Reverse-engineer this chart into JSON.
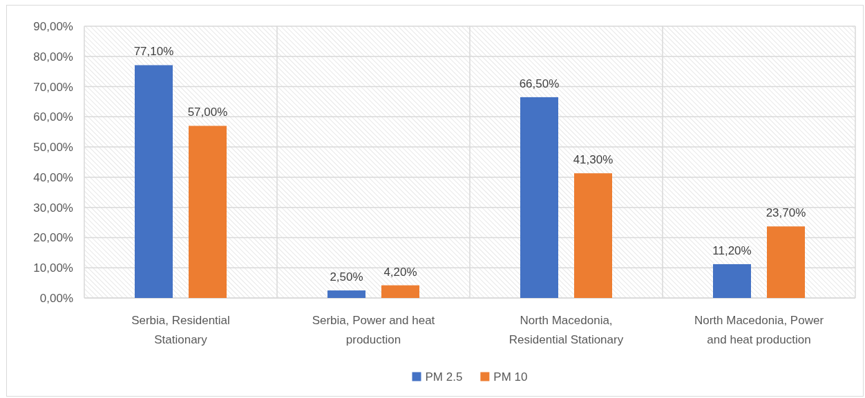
{
  "chart_data": {
    "type": "bar",
    "categories": [
      "Serbia, Residential Stationary",
      "Serbia, Power and heat production",
      "North Macedonia, Residential Stationary",
      "North Macedonia, Power and heat production"
    ],
    "series": [
      {
        "name": "PM 2.5",
        "color": "#4472c4",
        "values": [
          77.1,
          2.5,
          66.5,
          11.2
        ],
        "value_labels": [
          "77,10%",
          "2,50%",
          "66,50%",
          "11,20%"
        ]
      },
      {
        "name": "PM 10",
        "color": "#ed7d31",
        "values": [
          57.0,
          4.2,
          41.3,
          23.7
        ],
        "value_labels": [
          "57,00%",
          "4,20%",
          "41,30%",
          "23,70%"
        ]
      }
    ],
    "ylim": [
      0,
      90
    ],
    "yticks": [
      {
        "value": 0,
        "label": "0,00%"
      },
      {
        "value": 10,
        "label": "10,00%"
      },
      {
        "value": 20,
        "label": "20,00%"
      },
      {
        "value": 30,
        "label": "30,00%"
      },
      {
        "value": 40,
        "label": "40,00%"
      },
      {
        "value": 50,
        "label": "50,00%"
      },
      {
        "value": 60,
        "label": "60,00%"
      },
      {
        "value": 70,
        "label": "70,00%"
      },
      {
        "value": 80,
        "label": "80,00%"
      },
      {
        "value": 90,
        "label": "90,00%"
      }
    ],
    "grid": true,
    "legend": "bottom"
  }
}
